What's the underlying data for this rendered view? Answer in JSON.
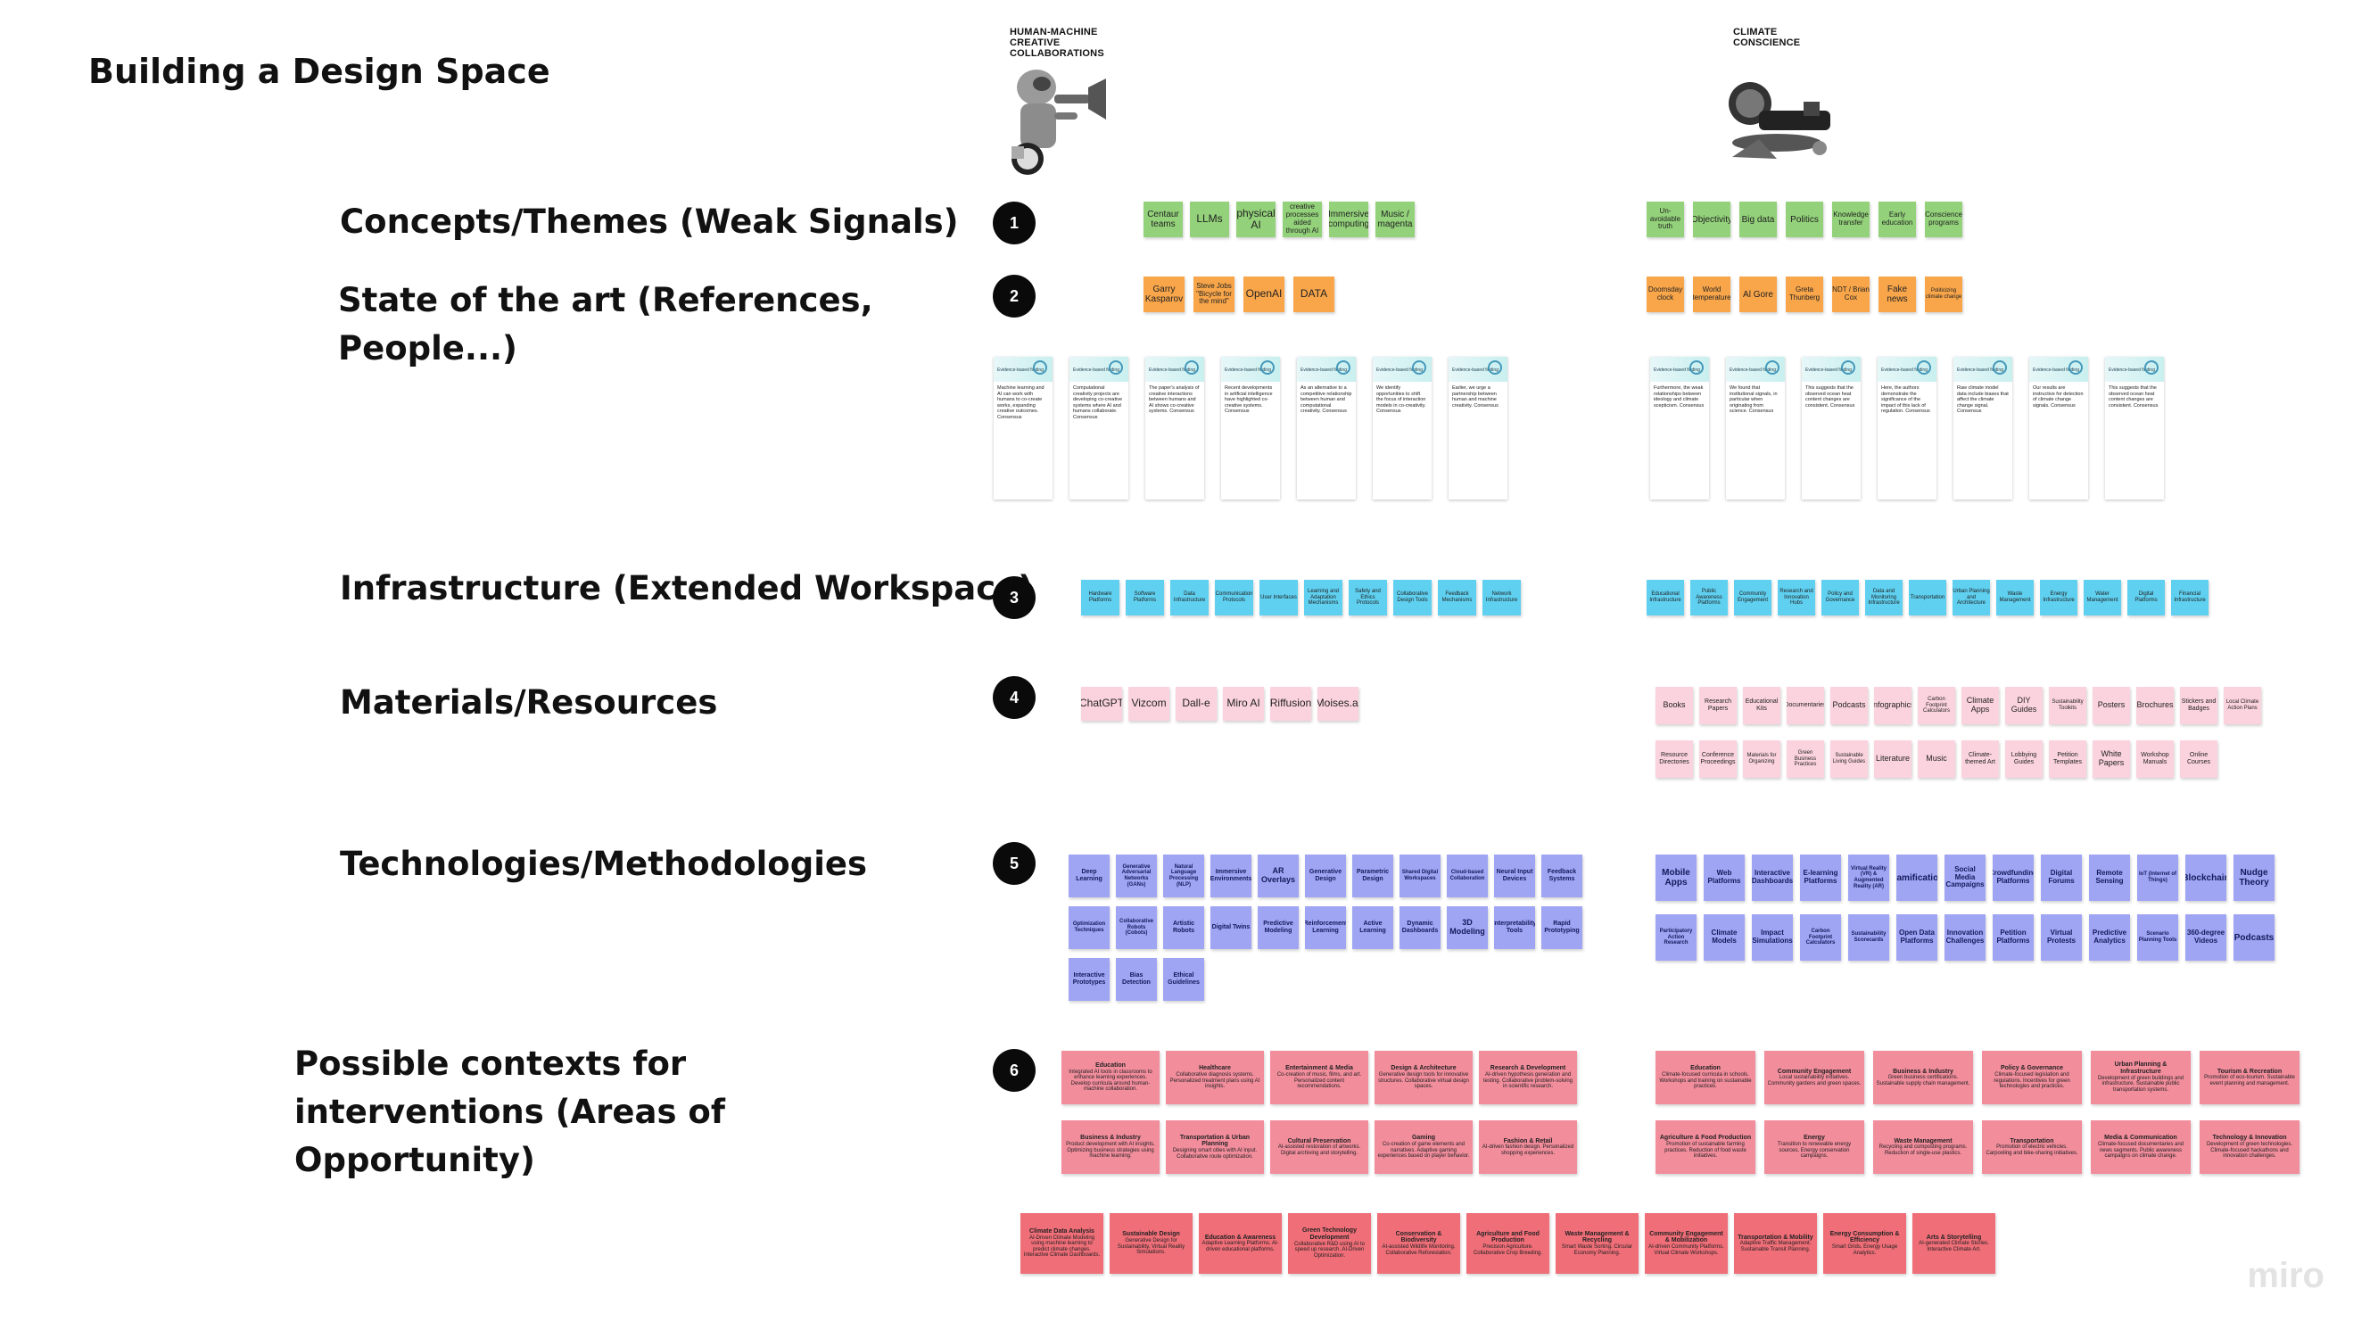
{
  "title": "Building a Design Space",
  "rows": [
    {
      "num": "1",
      "label": "Concepts/Themes (Weak Signals)"
    },
    {
      "num": "2",
      "label": "State of the art (References, People...)"
    },
    {
      "num": "3",
      "label": "Infrastructure (Extended Workspace)"
    },
    {
      "num": "4",
      "label": "Materials/Resources"
    },
    {
      "num": "5",
      "label": "Technologies/Methodologies"
    },
    {
      "num": "6",
      "label": "Possible contexts for interventions (Areas of Opportunity)"
    }
  ],
  "columns": {
    "left": "HUMAN-MACHINE CREATIVE COLLABORATIONS",
    "right": "CLIMATE CONSCIENCE"
  },
  "concepts_left": [
    "Centaur teams",
    "LLMs",
    "physical AI",
    "creative processes aided through AI",
    "Immersive computing",
    "Music / magenta"
  ],
  "concepts_right": [
    "Un-avoidable truth",
    "Objectivity",
    "Big data",
    "Politics",
    "Knowledge transfer",
    "Early education",
    "Conscience programs"
  ],
  "refs_left": [
    "Garry Kasparov",
    "Steve Jobs \"Bicycle for the mind\"",
    "OpenAI",
    "DATA"
  ],
  "refs_right": [
    "Doomsday clock",
    "World temperature",
    "Al Gore",
    "Greta Thunberg",
    "NDT / Brian Cox",
    "Fake news",
    "Politicizing climate change"
  ],
  "cards_left": [
    "Machine learning and AI can work with humans to co-create works, expanding creative outcomes. Consensus",
    "Computational creativity projects are developing co-creative systems where AI and humans collaborate. Consensus",
    "The paper's analysis of creative interactions between humans and AI shows co-creative systems. Consensus",
    "Recent developments in artificial intelligence have highlighted co-creative systems. Consensus",
    "As an alternative to a competitive relationship between human and computational creativity. Consensus",
    "We identify opportunities to shift the focus of interaction models in co-creativity. Consensus",
    "Earlier, we urge a partnership between human and machine creativity. Consensus"
  ],
  "cards_right": [
    "Furthermore, the weak relationships between ideology and climate scepticism. Consensus",
    "We found that institutional signals, in particular when originating from science. Consensus",
    "This suggests that the observed ocean heat content changes are consistent. Consensus",
    "Here, the authors demonstrate the significance of the impact of this lack of regulation. Consensus",
    "Raw climate model data include biases that affect the climate change signal. Consensus",
    "Our results are instructive for detection of climate change signals. Consensus",
    "This suggests that the observed ocean heat content changes are consistent. Consensus"
  ],
  "card_header": "Evidence-based finding",
  "infra_left": [
    "Hardware Platforms",
    "Software Platforms",
    "Data Infrastructure",
    "Communication Protocols",
    "User Interfaces",
    "Learning and Adaptation Mechanisms",
    "Safety and Ethics Protocols",
    "Collaborative Design Tools",
    "Feedback Mechanisms",
    "Network Infrastructure"
  ],
  "infra_right": [
    "Educational Infrastructure",
    "Public Awareness Platforms",
    "Community Engagement",
    "Research and Innovation Hubs",
    "Policy and Governance",
    "Data and Monitoring Infrastructure",
    "Transportation",
    "Urban Planning and Architecture",
    "Waste Management",
    "Energy Infrastructure",
    "Water Management",
    "Digital Platforms",
    "Financial Infrastructure"
  ],
  "materials_left": [
    "ChatGPT",
    "Vizcom",
    "Dall-e",
    "Miro AI",
    "Riffusion",
    "Moises.ai"
  ],
  "materials_right_1": [
    "Books",
    "Research Papers",
    "Educational Kits",
    "Documentaries",
    "Podcasts",
    "Infographics",
    "Carbon Footprint Calculators",
    "Climate Apps",
    "DIY Guides",
    "Sustainability Toolkits",
    "Posters",
    "Brochures",
    "Stickers and Badges",
    "Local Climate Action Plans"
  ],
  "materials_right_2": [
    "Resource Directories",
    "Conference Proceedings",
    "Materials for Organizing",
    "Green Business Practices",
    "Sustainable Living Guides",
    "Literature",
    "Music",
    "Climate-themed Art",
    "Lobbying Guides",
    "Petition Templates",
    "White Papers",
    "Workshop Manuals",
    "Online Courses"
  ],
  "tech_left_1": [
    "Deep Learning",
    "Generative Adversarial Networks (GANs)",
    "Natural Language Processing (NLP)",
    "Immersive Environments",
    "AR Overlays",
    "Generative Design",
    "Parametric Design",
    "Shared Digital Workspaces",
    "Cloud-based Collaboration",
    "Neural Input Devices",
    "Feedback Systems"
  ],
  "tech_left_2": [
    "Optimization Techniques",
    "Collaborative Robots (Cobots)",
    "Artistic Robots",
    "Digital Twins",
    "Predictive Modeling",
    "Reinforcement Learning",
    "Active Learning",
    "Dynamic Dashboards",
    "3D Modeling",
    "Interpretability Tools",
    "Rapid Prototyping"
  ],
  "tech_left_3": [
    "Interactive Prototypes",
    "Bias Detection",
    "Ethical Guidelines"
  ],
  "tech_right_1": [
    "Mobile Apps",
    "Web Platforms",
    "Interactive Dashboards",
    "E-learning Platforms",
    "Virtual Reality (VR) & Augmented Reality (AR)",
    "Gamification",
    "Social Media Campaigns",
    "Crowdfunding Platforms",
    "Digital Forums",
    "Remote Sensing",
    "IoT (Internet of Things)",
    "Blockchain",
    "Nudge Theory"
  ],
  "tech_right_2": [
    "Participatory Action Research",
    "Climate Models",
    "Impact Simulations",
    "Carbon Footprint Calculators",
    "Sustainability Scorecards",
    "Open Data Platforms",
    "Innovation Challenges",
    "Petition Platforms",
    "Virtual Protests",
    "Predictive Analytics",
    "Scenario Planning Tools",
    "360-degree Videos",
    "Podcasts"
  ],
  "ctx_left_1": [
    {
      "h": "Education",
      "t": "Integrated AI tools in classrooms to enhance learning experiences. Develop curricula around human-machine collaboration."
    },
    {
      "h": "Healthcare",
      "t": "Collaborative diagnosis systems. Personalized treatment plans using AI insights."
    },
    {
      "h": "Entertainment & Media",
      "t": "Co-creation of music, films, and art. Personalized content recommendations."
    },
    {
      "h": "Design & Architecture",
      "t": "Generative design tools for innovative structures. Collaborative virtual design spaces."
    },
    {
      "h": "Research & Development",
      "t": "AI-driven hypothesis generation and testing. Collaborative problem-solving in scientific research."
    }
  ],
  "ctx_left_2": [
    {
      "h": "Business & Industry",
      "t": "Product development with AI insights. Optimizing business strategies using machine learning."
    },
    {
      "h": "Transportation & Urban Planning",
      "t": "Designing smart cities with AI input. Collaborative route optimization."
    },
    {
      "h": "Cultural Preservation",
      "t": "AI-assisted restoration of artworks. Digital archiving and storytelling."
    },
    {
      "h": "Gaming",
      "t": "Co-creation of game elements and narratives. Adaptive gaming experiences based on player behavior."
    },
    {
      "h": "Fashion & Retail",
      "t": "AI-driven fashion design. Personalized shopping experiences."
    }
  ],
  "ctx_right_1": [
    {
      "h": "Education",
      "t": "Climate-focused curricula in schools. Workshops and training on sustainable practices."
    },
    {
      "h": "Community Engagement",
      "t": "Local sustainability initiatives. Community gardens and green spaces."
    },
    {
      "h": "Business & Industry",
      "t": "Green business certifications. Sustainable supply chain management."
    },
    {
      "h": "Policy & Governance",
      "t": "Climate-focused legislation and regulations. Incentives for green technologies and practices."
    },
    {
      "h": "Urban Planning & Infrastructure",
      "t": "Development of green buildings and infrastructure. Sustainable public transportation systems."
    },
    {
      "h": "Tourism & Recreation",
      "t": "Promotion of eco-tourism. Sustainable event planning and management."
    }
  ],
  "ctx_right_2": [
    {
      "h": "Agriculture & Food Production",
      "t": "Promotion of sustainable farming practices. Reduction of food waste initiatives."
    },
    {
      "h": "Energy",
      "t": "Transition to renewable energy sources. Energy conservation campaigns."
    },
    {
      "h": "Waste Management",
      "t": "Recycling and composting programs. Reduction of single-use plastics."
    },
    {
      "h": "Transportation",
      "t": "Promotion of electric vehicles. Carpooling and bike-sharing initiatives."
    },
    {
      "h": "Media & Communication",
      "t": "Climate-focused documentaries and news segments. Public awareness campaigns on climate change."
    },
    {
      "h": "Technology & Innovation",
      "t": "Development of green technologies. Climate-focused hackathons and innovation challenges."
    }
  ],
  "ctx_bottom": [
    {
      "h": "Climate Data Analysis",
      "t": "AI-Driven Climate Modeling using machine learning to predict climate changes. Interactive Climate Dashboards."
    },
    {
      "h": "Sustainable Design",
      "t": "Generative Design for Sustainability. Virtual Reality Simulations."
    },
    {
      "h": "Education & Awareness",
      "t": "Adaptive Learning Platforms. AI-driven educational platforms."
    },
    {
      "h": "Green Technology Development",
      "t": "Collaborative R&D using AI to speed up research. AI-Driven Optimization."
    },
    {
      "h": "Conservation & Biodiversity",
      "t": "AI-assisted Wildlife Monitoring. Collaborative Reforestation."
    },
    {
      "h": "Agriculture and Food Production",
      "t": "Precision Agriculture. Collaborative Crop Breeding."
    },
    {
      "h": "Waste Management & Recycling",
      "t": "Smart Waste Sorting. Circular Economy Planning."
    },
    {
      "h": "Community Engagement & Mobilization",
      "t": "AI-driven Community Platforms. Virtual Climate Workshops."
    },
    {
      "h": "Transportation & Mobility",
      "t": "Adaptive Traffic Management. Sustainable Transit Planning."
    },
    {
      "h": "Energy Consumption & Efficiency",
      "t": "Smart Grids. Energy Usage Analytics."
    },
    {
      "h": "Arts & Storytelling",
      "t": "AI-generated Climate Stories. Interactive Climate Art."
    }
  ],
  "watermark": "miro"
}
